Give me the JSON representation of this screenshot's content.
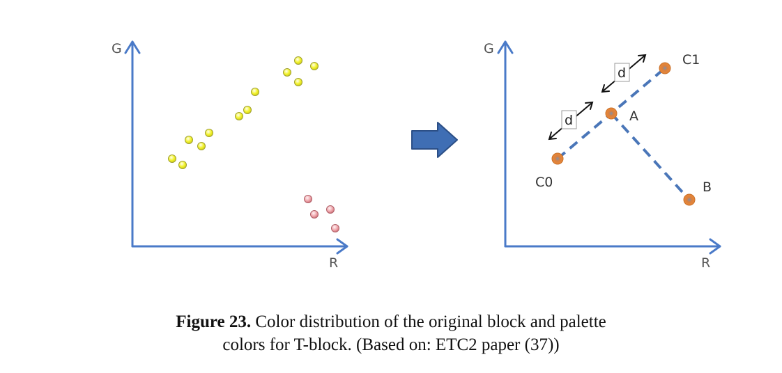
{
  "left_plot": {
    "x_axis_label": "R",
    "y_axis_label": "G"
  },
  "right_plot": {
    "x_axis_label": "R",
    "y_axis_label": "G",
    "labels": {
      "c0": "C0",
      "c1": "C1",
      "a": "A",
      "b": "B",
      "d": "d"
    }
  },
  "colors": {
    "axis": "#4a7ac8",
    "yellow_point": "#f2f22a",
    "red_point": "#f0a8ae",
    "orange_point": "#f08a32",
    "dashed_line": "#4a76b8",
    "arrow_fill": "#3f6eb4",
    "arrow_stroke": "#2c4f86"
  },
  "caption": {
    "label": "Figure 23.",
    "line1": " Color distribution of the original block and palette",
    "line2": "colors for T-block. (Based on: ETC2 paper (37))"
  }
}
